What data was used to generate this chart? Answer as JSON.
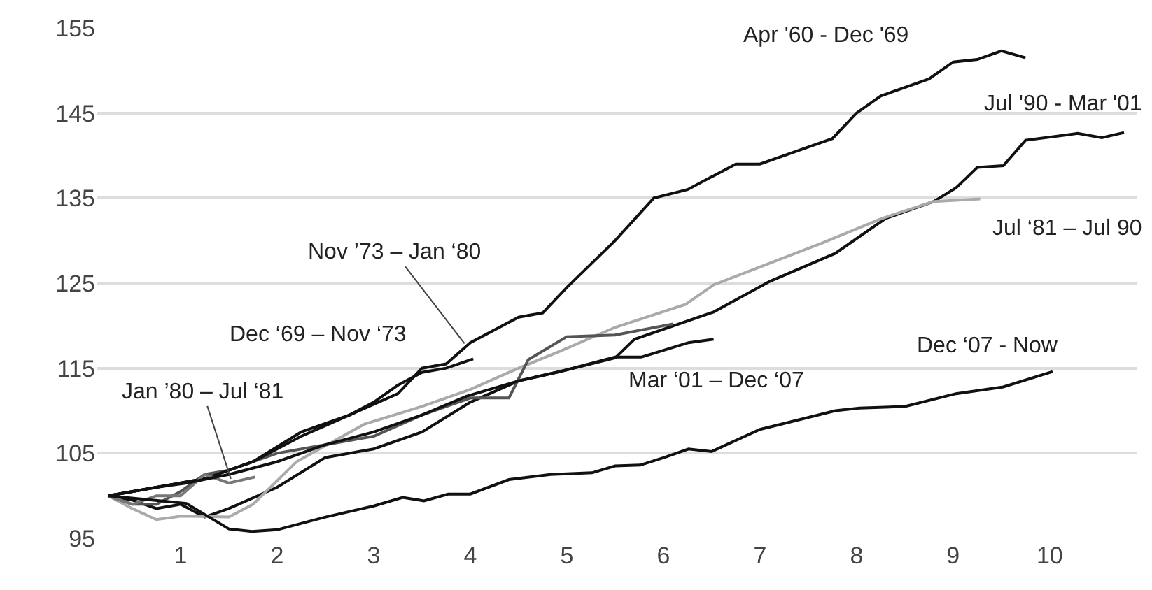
{
  "chart_data": {
    "type": "line",
    "xlim": [
      0.13,
      10.9
    ],
    "xticks": [
      1,
      2,
      3,
      4,
      5,
      6,
      7,
      8,
      9,
      10
    ],
    "ylim": [
      95,
      155
    ],
    "yticks": [
      95,
      105,
      115,
      125,
      135,
      145,
      155
    ],
    "grid": "y",
    "marker": "none",
    "line_style": "solid",
    "series": [
      {
        "color": "#111111",
        "x": [
          0.25,
          0.75,
          1.25,
          1.75,
          2.25,
          2.75,
          3.25,
          3.5,
          3.75,
          4,
          4.5,
          4.75,
          5,
          5.5,
          5.9,
          6.25,
          6.75,
          7,
          7.5,
          7.75,
          8,
          8.25,
          8.5,
          8.75,
          9,
          9.25,
          9.5,
          9.75
        ],
        "values": [
          100,
          101,
          102,
          104,
          107.5,
          109.5,
          112,
          115,
          115.5,
          118,
          121,
          121.5,
          124.5,
          130,
          135,
          136,
          139,
          139,
          141,
          142,
          145,
          147,
          148,
          149,
          151,
          151.3,
          152.3,
          151.5
        ]
      },
      {
        "color": "#111111",
        "x": [
          0.25,
          0.5,
          0.75,
          1,
          1.25,
          1.5,
          2,
          2.5,
          3,
          3.5,
          4,
          4.5,
          4.93,
          5.5,
          5.7,
          6.52,
          7.1,
          7.78,
          8.3,
          8.8,
          9.03,
          9.25,
          9.52,
          9.75,
          10.29,
          10.54,
          10.77
        ],
        "values": [
          100,
          99.5,
          98.5,
          99,
          97.5,
          98.5,
          101,
          104.5,
          105.5,
          107.5,
          111,
          113.5,
          114.6,
          116.2,
          118.4,
          121.6,
          125.2,
          128.5,
          132.6,
          134.6,
          136.2,
          138.6,
          138.8,
          141.8,
          142.6,
          142.1,
          142.7
        ]
      },
      {
        "color": "#aaaaaa",
        "x": [
          0.25,
          0.5,
          0.75,
          1,
          1.5,
          1.75,
          2.2,
          2.9,
          3.5,
          4,
          4.5,
          4.93,
          5.5,
          6.23,
          6.52,
          7,
          7.64,
          8.26,
          8.8,
          9.28
        ],
        "values": [
          100,
          98.5,
          97.2,
          97.6,
          97.5,
          99,
          104,
          108.4,
          110.5,
          112.5,
          115,
          117,
          119.8,
          122.5,
          124.8,
          126.9,
          129.7,
          132.6,
          134.6,
          134.9
        ]
      },
      {
        "color": "#555555",
        "x": [
          0.25,
          0.5,
          0.75,
          1,
          1.25,
          1.5,
          2,
          2.5,
          3,
          3.5,
          4,
          4.4,
          4.6,
          5,
          5.5,
          6.1
        ],
        "values": [
          100,
          99,
          99,
          100.5,
          102.5,
          103,
          105,
          106,
          107,
          109.5,
          111.5,
          111.5,
          116,
          118.7,
          118.9,
          120.2
        ]
      },
      {
        "color": "#111111",
        "x": [
          0.25,
          0.75,
          1.25,
          1.75,
          2.25,
          2.75,
          3,
          3.25,
          3.5,
          3.75,
          4.03
        ],
        "values": [
          100,
          101,
          102,
          104,
          107,
          109.5,
          111,
          113,
          114.5,
          115,
          116.1
        ]
      },
      {
        "color": "#777777",
        "x": [
          0.25,
          0.5,
          0.75,
          1,
          1.25,
          1.5,
          1.77
        ],
        "values": [
          100,
          99,
          100,
          100,
          102.5,
          101.5,
          102.2
        ]
      },
      {
        "color": "#111111",
        "x": [
          0.25,
          0.75,
          1.06,
          1.5,
          2,
          2.5,
          3,
          3.5,
          3.96,
          4.5,
          4.93,
          5.5,
          5.77,
          6.26,
          6.52
        ],
        "values": [
          100,
          101,
          101.5,
          102.5,
          104,
          106,
          107.5,
          109.5,
          111.7,
          113.5,
          114.6,
          116.3,
          116.3,
          118,
          118.4
        ]
      },
      {
        "color": "#111111",
        "x": [
          0.25,
          1.06,
          1.5,
          1.74,
          2,
          2.5,
          3,
          3.3,
          3.52,
          3.77,
          4,
          4.4,
          4.83,
          5.26,
          5.5,
          5.76,
          6.01,
          6.26,
          6.5,
          7,
          7.25,
          7.78,
          8.03,
          8.5,
          9.03,
          9.52,
          10.03
        ],
        "values": [
          100,
          99.1,
          96.1,
          95.8,
          96,
          97.5,
          98.8,
          99.8,
          99.4,
          100.2,
          100.2,
          101.9,
          102.5,
          102.7,
          103.5,
          103.6,
          104.5,
          105.5,
          105.2,
          107.8,
          108.5,
          110,
          110.3,
          110.5,
          112,
          112.8,
          114.6
        ]
      }
    ],
    "annotations": [
      "Apr '60 - Dec '69",
      "Jul '90 - Mar '01",
      "Jul ‘81 – Jul 90",
      {
        "text": "Nov ’73 – Jan ‘80",
        "x": 3.94,
        "y": 117.9
      },
      {
        "text": "Jan ’80 – Jul ‘81",
        "x": 1.52,
        "y": 102
      },
      "Dec ‘69 – Nov ‘73",
      "Mar ‘01 – Dec ‘07",
      "Dec ‘07 - Now"
    ]
  }
}
